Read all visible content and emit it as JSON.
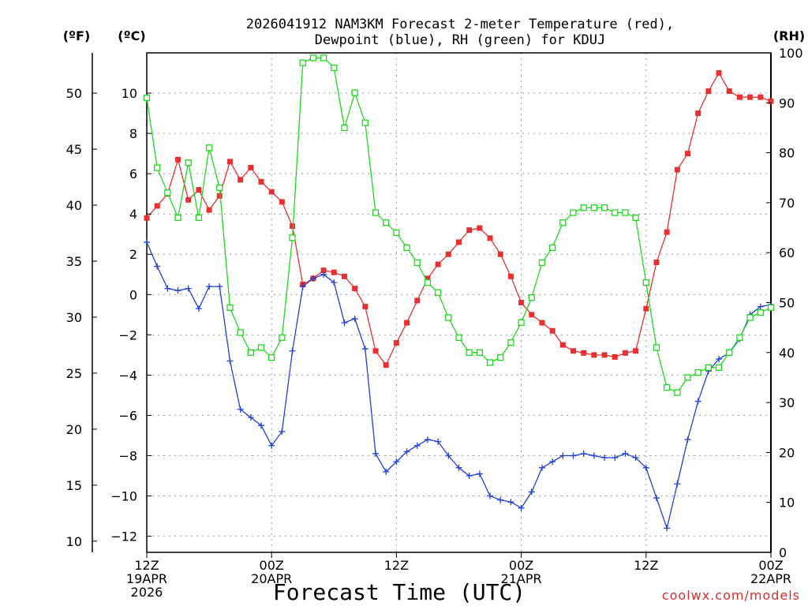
{
  "chart_data": {
    "type": "line",
    "title": "2026041912 NAM3KM Forecast 2-meter Temperature (red), Dewpoint (blue), RH (green) for KDUJ",
    "title_lines": [
      "2026041912 NAM3KM Forecast 2-meter Temperature (red),",
      "Dewpoint (blue), RH (green) for KDUJ"
    ],
    "xlabel": "Forecast Time (UTC)",
    "credit": "coolwx.com/models",
    "units": {
      "fahrenheit": "(ºF)",
      "celsius": "(ºC)",
      "rh": "(RH)"
    },
    "x_forecast_hours": [
      0,
      1,
      2,
      3,
      4,
      5,
      6,
      7,
      8,
      9,
      10,
      11,
      12,
      13,
      14,
      15,
      16,
      17,
      18,
      19,
      20,
      21,
      22,
      23,
      24,
      25,
      26,
      27,
      28,
      29,
      30,
      31,
      32,
      33,
      34,
      35,
      36,
      37,
      38,
      39,
      40,
      41,
      42,
      43,
      44,
      45,
      46,
      47,
      48,
      49,
      50,
      51,
      52,
      53,
      54,
      55,
      56,
      57,
      58,
      59,
      60
    ],
    "xlim": [
      0,
      60
    ],
    "x_ticks": [
      {
        "hour": 0,
        "line1": "12Z",
        "line2": "19APR",
        "line3": "2026"
      },
      {
        "hour": 12,
        "line1": "00Z",
        "line2": "20APR",
        "line3": ""
      },
      {
        "hour": 24,
        "line1": "12Z",
        "line2": "",
        "line3": ""
      },
      {
        "hour": 36,
        "line1": "00Z",
        "line2": "21APR",
        "line3": ""
      },
      {
        "hour": 48,
        "line1": "12Z",
        "line2": "",
        "line3": ""
      },
      {
        "hour": 60,
        "line1": "00Z",
        "line2": "22APR",
        "line3": ""
      }
    ],
    "ylim_celsius": [
      -12.8,
      12
    ],
    "ylim_fahrenheit": [
      9.0,
      53.6
    ],
    "ylim_rh": [
      0,
      100
    ],
    "yticks_celsius": [
      "-12",
      "-10",
      "-8",
      "-6",
      "-4",
      "-2",
      "0",
      "2",
      "4",
      "6",
      "8",
      "10"
    ],
    "yticks_fahrenheit": [
      "10",
      "15",
      "20",
      "25",
      "30",
      "35",
      "40",
      "45",
      "50"
    ],
    "yticks_rh": [
      "0",
      "10",
      "20",
      "30",
      "40",
      "50",
      "60",
      "70",
      "80",
      "90",
      "100"
    ],
    "series": [
      {
        "name": "2-meter Temperature",
        "color": "#e83030",
        "marker": "filled-square",
        "axis": "celsius",
        "values": [
          3.8,
          4.4,
          5.0,
          6.7,
          4.7,
          5.2,
          4.2,
          4.9,
          6.6,
          5.7,
          6.3,
          5.6,
          5.1,
          4.6,
          3.4,
          0.5,
          0.8,
          1.2,
          1.1,
          0.9,
          0.3,
          -0.6,
          -2.8,
          -3.5,
          -2.4,
          -1.4,
          -0.3,
          0.8,
          1.5,
          2.0,
          2.6,
          3.2,
          3.3,
          2.8,
          2.0,
          0.9,
          -0.4,
          -1.0,
          -1.4,
          -1.8,
          -2.5,
          -2.8,
          -2.9,
          -3.0,
          -3.0,
          -3.1,
          -2.9,
          -2.8,
          -0.7,
          1.6,
          3.1,
          6.2,
          7.0,
          9.0,
          10.1,
          11.0,
          10.1,
          9.8,
          9.8,
          9.8,
          9.6
        ]
      },
      {
        "name": "Dewpoint",
        "color": "#2040d8",
        "marker": "plus",
        "axis": "celsius",
        "values": [
          2.6,
          1.4,
          0.3,
          0.2,
          0.3,
          -0.7,
          0.4,
          0.4,
          -3.3,
          -5.7,
          -6.1,
          -6.5,
          -7.5,
          -6.8,
          -2.8,
          0.4,
          0.8,
          1.0,
          0.6,
          -1.4,
          -1.2,
          -2.7,
          -7.9,
          -8.8,
          -8.3,
          -7.8,
          -7.5,
          -7.2,
          -7.3,
          -8.0,
          -8.6,
          -9.0,
          -8.9,
          -10.0,
          -10.2,
          -10.3,
          -10.6,
          -9.8,
          -8.6,
          -8.3,
          -8.0,
          -8.0,
          -7.9,
          -8.0,
          -8.1,
          -8.1,
          -7.9,
          -8.1,
          -8.6,
          -10.1,
          -11.6,
          -9.4,
          -7.2,
          -5.3,
          -3.8,
          -3.2,
          -2.9,
          -2.2,
          -1.0,
          -0.6,
          -0.5
        ]
      },
      {
        "name": "RH",
        "color": "#20d820",
        "marker": "open-square",
        "axis": "rh",
        "values": [
          91,
          77,
          72,
          67,
          78,
          67,
          81,
          73,
          49,
          44,
          40,
          41,
          39,
          43,
          63,
          98,
          99,
          99,
          97,
          85,
          92,
          86,
          68,
          66,
          64,
          61,
          58,
          54,
          52,
          47,
          43,
          40,
          40,
          38,
          39,
          42,
          46,
          51,
          58,
          61,
          66,
          68,
          69,
          69,
          69,
          68,
          68,
          67,
          54,
          41,
          33,
          32,
          35,
          36,
          37,
          37,
          40,
          43,
          47,
          48,
          49
        ]
      }
    ]
  }
}
